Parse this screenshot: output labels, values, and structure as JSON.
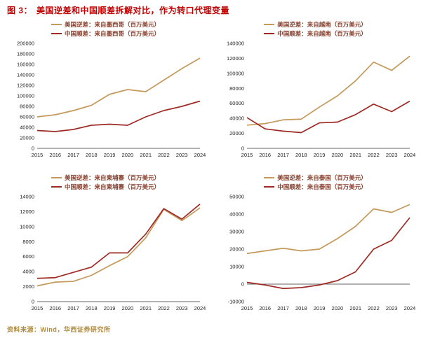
{
  "header": {
    "tag": "图 3：",
    "title": "美国逆差和中国顺差拆解对比，作为转口代理变量"
  },
  "footer": {
    "source": "资料来源：Wind，华西证券研究所"
  },
  "colors": {
    "us": "#c49a5b",
    "cn": "#9e2a25",
    "axis": "#333333",
    "title": "#c00000"
  },
  "chart_data": [
    {
      "type": "line",
      "categories": [
        "2015",
        "2016",
        "2017",
        "2018",
        "2019",
        "2020",
        "2021",
        "2022",
        "2023",
        "2024"
      ],
      "ylim": [
        0,
        200000
      ],
      "ytick": 20000,
      "legend_position": "top",
      "grid": false,
      "series": [
        {
          "name": "美国逆差：来自墨西哥（百万美元）",
          "color": "us",
          "values": [
            60000,
            64000,
            72000,
            82000,
            103000,
            112000,
            108000,
            130000,
            152000,
            172000
          ]
        },
        {
          "name": "中国顺差：来自墨西哥（百万美元）",
          "color": "cn",
          "values": [
            34000,
            32000,
            36000,
            44000,
            46000,
            44000,
            60000,
            72000,
            80000,
            90000
          ]
        }
      ]
    },
    {
      "type": "line",
      "categories": [
        "2015",
        "2016",
        "2017",
        "2018",
        "2019",
        "2020",
        "2021",
        "2022",
        "2023",
        "2024"
      ],
      "ylim": [
        0,
        140000
      ],
      "ytick": 20000,
      "legend_position": "top",
      "grid": false,
      "series": [
        {
          "name": "美国逆差：来自越南（百万美元）",
          "color": "us",
          "values": [
            31000,
            33000,
            38000,
            39000,
            55000,
            70000,
            90000,
            115000,
            104000,
            123000
          ]
        },
        {
          "name": "中国顺差：来自越南（百万美元）",
          "color": "cn",
          "values": [
            41000,
            26000,
            23000,
            21000,
            34000,
            35000,
            45000,
            59000,
            49000,
            63000
          ]
        }
      ]
    },
    {
      "type": "line",
      "categories": [
        "2015",
        "2016",
        "2017",
        "2018",
        "2019",
        "2020",
        "2021",
        "2022",
        "2023",
        "2024"
      ],
      "ylim": [
        0,
        14000
      ],
      "ytick": 2000,
      "legend_position": "top",
      "grid": false,
      "series": [
        {
          "name": "美国逆差：来自柬埔寨（百万美元）",
          "color": "us",
          "values": [
            2100,
            2600,
            2700,
            3500,
            4800,
            6000,
            8500,
            12300,
            10800,
            12500
          ]
        },
        {
          "name": "中国顺差：来自柬埔寨（百万美元）",
          "color": "cn",
          "values": [
            3100,
            3200,
            3900,
            4600,
            6500,
            6500,
            9000,
            12400,
            11000,
            13000
          ]
        }
      ]
    },
    {
      "type": "line",
      "categories": [
        "2015",
        "2016",
        "2017",
        "2018",
        "2019",
        "2020",
        "2021",
        "2022",
        "2023",
        "2024"
      ],
      "ylim": [
        -10000,
        50000
      ],
      "ytick": 10000,
      "legend_position": "top",
      "grid": false,
      "series": [
        {
          "name": "美国逆差：来自泰国（百万美元）",
          "color": "us",
          "values": [
            17500,
            19000,
            20500,
            19000,
            20000,
            26000,
            33000,
            43000,
            41000,
            45500
          ]
        },
        {
          "name": "中国顺差：来自泰国（百万美元）",
          "color": "cn",
          "values": [
            1000,
            -500,
            -2500,
            -2000,
            -500,
            2000,
            7000,
            20000,
            25000,
            38000
          ]
        }
      ]
    }
  ]
}
